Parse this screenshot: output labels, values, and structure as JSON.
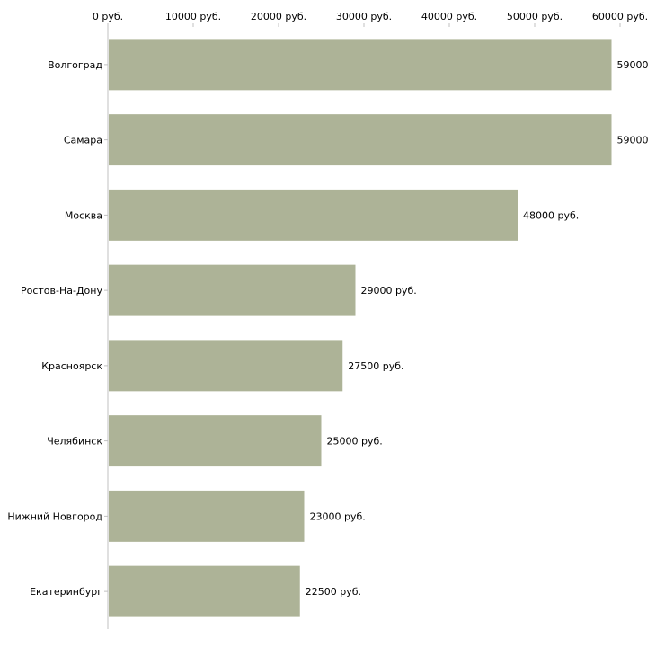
{
  "chart_data": {
    "type": "bar",
    "orientation": "horizontal",
    "title": "",
    "xlabel": "",
    "ylabel": "",
    "xlim": [
      0,
      60000
    ],
    "x_ticks": [
      0,
      10000,
      20000,
      30000,
      40000,
      50000,
      60000
    ],
    "x_tick_labels": [
      "0 руб.",
      "10000 руб.",
      "20000 руб.",
      "30000 руб.",
      "40000 руб.",
      "50000 руб.",
      "60000 руб."
    ],
    "categories": [
      "Волгоград",
      "Самара",
      "Москва",
      "Ростов-На-Дону",
      "Красноярск",
      "Челябинск",
      "Нижний Новгород",
      "Екатеринбург"
    ],
    "values": [
      59000,
      59000,
      48000,
      29000,
      27500,
      25000,
      23000,
      22500
    ],
    "data_labels": [
      "59000",
      "59000",
      "48000 руб.",
      "29000 руб.",
      "27500 руб.",
      "25000 руб.",
      "23000 руб.",
      "22500 руб."
    ],
    "bar_color": "#adb397",
    "grid": false,
    "legend": "none"
  }
}
